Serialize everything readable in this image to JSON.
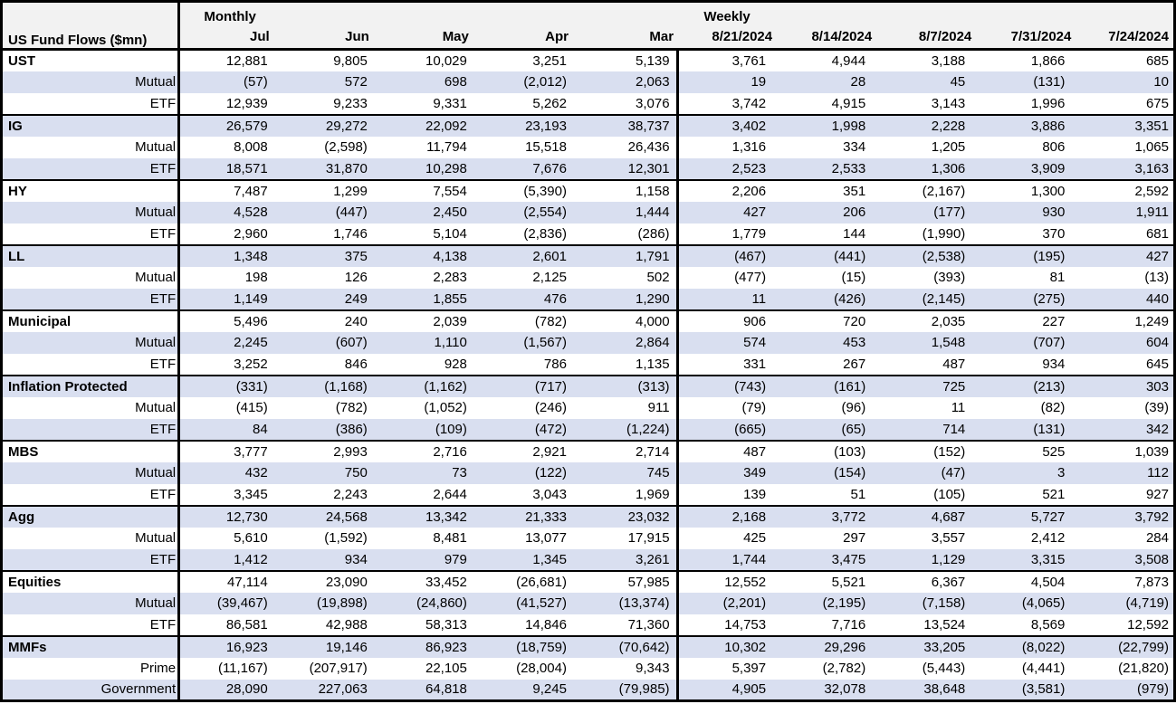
{
  "colors": {
    "stripe": "#D9DFF0",
    "header_bg": "#F2F2F2",
    "border": "#000000",
    "text": "#000000"
  },
  "chart_data": {
    "type": "table",
    "title": "US Fund Flows ($mn)",
    "sections": [
      {
        "label": "Monthly",
        "columns": [
          "Jul",
          "Jun",
          "May",
          "Apr",
          "Mar"
        ]
      },
      {
        "label": "Weekly",
        "columns": [
          "8/21/2024",
          "8/14/2024",
          "8/7/2024",
          "7/31/2024",
          "7/24/2024"
        ]
      }
    ],
    "rows": [
      {
        "label": "UST",
        "header": true,
        "group": "UST",
        "monthly": [
          "12,881",
          "9,805",
          "10,029",
          "3,251",
          "5,139"
        ],
        "weekly": [
          "3,761",
          "4,944",
          "3,188",
          "1,866",
          "685"
        ]
      },
      {
        "label": "Mutual",
        "header": false,
        "group": "UST",
        "monthly": [
          "(57)",
          "572",
          "698",
          "(2,012)",
          "2,063"
        ],
        "weekly": [
          "19",
          "28",
          "45",
          "(131)",
          "10"
        ]
      },
      {
        "label": "ETF",
        "header": false,
        "group": "UST",
        "monthly": [
          "12,939",
          "9,233",
          "9,331",
          "5,262",
          "3,076"
        ],
        "weekly": [
          "3,742",
          "4,915",
          "3,143",
          "1,996",
          "675"
        ]
      },
      {
        "label": "IG",
        "header": true,
        "group": "IG",
        "monthly": [
          "26,579",
          "29,272",
          "22,092",
          "23,193",
          "38,737"
        ],
        "weekly": [
          "3,402",
          "1,998",
          "2,228",
          "3,886",
          "3,351"
        ]
      },
      {
        "label": "Mutual",
        "header": false,
        "group": "IG",
        "monthly": [
          "8,008",
          "(2,598)",
          "11,794",
          "15,518",
          "26,436"
        ],
        "weekly": [
          "1,316",
          "334",
          "1,205",
          "806",
          "1,065"
        ]
      },
      {
        "label": "ETF",
        "header": false,
        "group": "IG",
        "monthly": [
          "18,571",
          "31,870",
          "10,298",
          "7,676",
          "12,301"
        ],
        "weekly": [
          "2,523",
          "2,533",
          "1,306",
          "3,909",
          "3,163"
        ]
      },
      {
        "label": "HY",
        "header": true,
        "group": "HY",
        "monthly": [
          "7,487",
          "1,299",
          "7,554",
          "(5,390)",
          "1,158"
        ],
        "weekly": [
          "2,206",
          "351",
          "(2,167)",
          "1,300",
          "2,592"
        ]
      },
      {
        "label": "Mutual",
        "header": false,
        "group": "HY",
        "monthly": [
          "4,528",
          "(447)",
          "2,450",
          "(2,554)",
          "1,444"
        ],
        "weekly": [
          "427",
          "206",
          "(177)",
          "930",
          "1,911"
        ]
      },
      {
        "label": "ETF",
        "header": false,
        "group": "HY",
        "monthly": [
          "2,960",
          "1,746",
          "5,104",
          "(2,836)",
          "(286)"
        ],
        "weekly": [
          "1,779",
          "144",
          "(1,990)",
          "370",
          "681"
        ]
      },
      {
        "label": "LL",
        "header": true,
        "group": "LL",
        "monthly": [
          "1,348",
          "375",
          "4,138",
          "2,601",
          "1,791"
        ],
        "weekly": [
          "(467)",
          "(441)",
          "(2,538)",
          "(195)",
          "427"
        ]
      },
      {
        "label": "Mutual",
        "header": false,
        "group": "LL",
        "monthly": [
          "198",
          "126",
          "2,283",
          "2,125",
          "502"
        ],
        "weekly": [
          "(477)",
          "(15)",
          "(393)",
          "81",
          "(13)"
        ]
      },
      {
        "label": "ETF",
        "header": false,
        "group": "LL",
        "monthly": [
          "1,149",
          "249",
          "1,855",
          "476",
          "1,290"
        ],
        "weekly": [
          "11",
          "(426)",
          "(2,145)",
          "(275)",
          "440"
        ]
      },
      {
        "label": "Municipal",
        "header": true,
        "group": "Municipal",
        "monthly": [
          "5,496",
          "240",
          "2,039",
          "(782)",
          "4,000"
        ],
        "weekly": [
          "906",
          "720",
          "2,035",
          "227",
          "1,249"
        ]
      },
      {
        "label": "Mutual",
        "header": false,
        "group": "Municipal",
        "monthly": [
          "2,245",
          "(607)",
          "1,110",
          "(1,567)",
          "2,864"
        ],
        "weekly": [
          "574",
          "453",
          "1,548",
          "(707)",
          "604"
        ]
      },
      {
        "label": "ETF",
        "header": false,
        "group": "Municipal",
        "monthly": [
          "3,252",
          "846",
          "928",
          "786",
          "1,135"
        ],
        "weekly": [
          "331",
          "267",
          "487",
          "934",
          "645"
        ]
      },
      {
        "label": "Inflation Protected",
        "header": true,
        "group": "Inflation Protected",
        "monthly": [
          "(331)",
          "(1,168)",
          "(1,162)",
          "(717)",
          "(313)"
        ],
        "weekly": [
          "(743)",
          "(161)",
          "725",
          "(213)",
          "303"
        ]
      },
      {
        "label": "Mutual",
        "header": false,
        "group": "Inflation Protected",
        "monthly": [
          "(415)",
          "(782)",
          "(1,052)",
          "(246)",
          "911"
        ],
        "weekly": [
          "(79)",
          "(96)",
          "11",
          "(82)",
          "(39)"
        ]
      },
      {
        "label": "ETF",
        "header": false,
        "group": "Inflation Protected",
        "monthly": [
          "84",
          "(386)",
          "(109)",
          "(472)",
          "(1,224)"
        ],
        "weekly": [
          "(665)",
          "(65)",
          "714",
          "(131)",
          "342"
        ]
      },
      {
        "label": "MBS",
        "header": true,
        "group": "MBS",
        "monthly": [
          "3,777",
          "2,993",
          "2,716",
          "2,921",
          "2,714"
        ],
        "weekly": [
          "487",
          "(103)",
          "(152)",
          "525",
          "1,039"
        ]
      },
      {
        "label": "Mutual",
        "header": false,
        "group": "MBS",
        "monthly": [
          "432",
          "750",
          "73",
          "(122)",
          "745"
        ],
        "weekly": [
          "349",
          "(154)",
          "(47)",
          "3",
          "112"
        ]
      },
      {
        "label": "ETF",
        "header": false,
        "group": "MBS",
        "monthly": [
          "3,345",
          "2,243",
          "2,644",
          "3,043",
          "1,969"
        ],
        "weekly": [
          "139",
          "51",
          "(105)",
          "521",
          "927"
        ]
      },
      {
        "label": "Agg",
        "header": true,
        "group": "Agg",
        "monthly": [
          "12,730",
          "24,568",
          "13,342",
          "21,333",
          "23,032"
        ],
        "weekly": [
          "2,168",
          "3,772",
          "4,687",
          "5,727",
          "3,792"
        ]
      },
      {
        "label": "Mutual",
        "header": false,
        "group": "Agg",
        "monthly": [
          "5,610",
          "(1,592)",
          "8,481",
          "13,077",
          "17,915"
        ],
        "weekly": [
          "425",
          "297",
          "3,557",
          "2,412",
          "284"
        ]
      },
      {
        "label": "ETF",
        "header": false,
        "group": "Agg",
        "monthly": [
          "1,412",
          "934",
          "979",
          "1,345",
          "3,261"
        ],
        "weekly": [
          "1,744",
          "3,475",
          "1,129",
          "3,315",
          "3,508"
        ]
      },
      {
        "label": "Equities",
        "header": true,
        "group": "Equities",
        "monthly": [
          "47,114",
          "23,090",
          "33,452",
          "(26,681)",
          "57,985"
        ],
        "weekly": [
          "12,552",
          "5,521",
          "6,367",
          "4,504",
          "7,873"
        ]
      },
      {
        "label": "Mutual",
        "header": false,
        "group": "Equities",
        "monthly": [
          "(39,467)",
          "(19,898)",
          "(24,860)",
          "(41,527)",
          "(13,374)"
        ],
        "weekly": [
          "(2,201)",
          "(2,195)",
          "(7,158)",
          "(4,065)",
          "(4,719)"
        ]
      },
      {
        "label": "ETF",
        "header": false,
        "group": "Equities",
        "monthly": [
          "86,581",
          "42,988",
          "58,313",
          "14,846",
          "71,360"
        ],
        "weekly": [
          "14,753",
          "7,716",
          "13,524",
          "8,569",
          "12,592"
        ]
      },
      {
        "label": "MMFs",
        "header": true,
        "group": "MMFs",
        "monthly": [
          "16,923",
          "19,146",
          "86,923",
          "(18,759)",
          "(70,642)"
        ],
        "weekly": [
          "10,302",
          "29,296",
          "33,205",
          "(8,022)",
          "(22,799)"
        ]
      },
      {
        "label": "Prime",
        "header": false,
        "group": "MMFs",
        "monthly": [
          "(11,167)",
          "(207,917)",
          "22,105",
          "(28,004)",
          "9,343"
        ],
        "weekly": [
          "5,397",
          "(2,782)",
          "(5,443)",
          "(4,441)",
          "(21,820)"
        ]
      },
      {
        "label": "Government",
        "header": false,
        "group": "MMFs",
        "monthly": [
          "28,090",
          "227,063",
          "64,818",
          "9,245",
          "(79,985)"
        ],
        "weekly": [
          "4,905",
          "32,078",
          "38,648",
          "(3,581)",
          "(979)"
        ]
      }
    ]
  }
}
